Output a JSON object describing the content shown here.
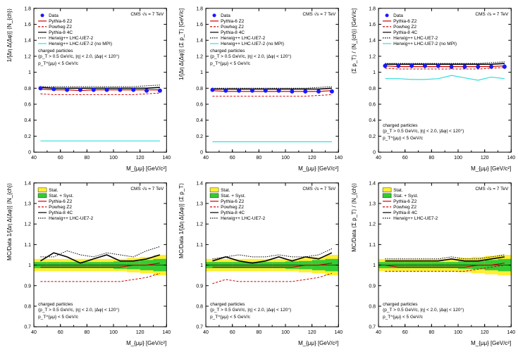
{
  "meta": {
    "experiment": "CMS",
    "sqrt_s": "√s = 7 TeV"
  },
  "common": {
    "x_label": "M_{μμ} [GeV/c²]",
    "xlim": [
      40,
      140
    ],
    "xticks": [
      40,
      60,
      80,
      100,
      120,
      140
    ],
    "cuts": "charged particles",
    "cut_detail": "(p_T > 0.5 GeV/c, |η| < 2.0, |Δφ| < 120°)",
    "pt_cut": "p_T^{μμ} < 5 GeV/c",
    "colors": {
      "data": "#1a1aff",
      "pythia6": "#cc0000",
      "powheg": "#cc0000",
      "pythia8": "#000000",
      "herwig": "#000000",
      "herwig_nompi": "#33dddd",
      "stat_band": "#ffee33",
      "statsyst_band": "#33cc33",
      "axis": "#000000",
      "tick": "#000000"
    },
    "line_styles": {
      "pythia6": "solid",
      "powheg": "dashed",
      "pythia8": "solid",
      "herwig": "dotted",
      "herwig_nompi": "solid"
    },
    "line_widths": {
      "pythia6": 1.2,
      "powheg": 1.0,
      "pythia8": 1.6,
      "herwig": 1.0,
      "herwig_nompi": 1.2
    },
    "marker": {
      "data_shape": "circle",
      "data_size": 3.0
    }
  },
  "top_legend": [
    {
      "label": "Data",
      "kind": "marker",
      "color": "#1a1aff"
    },
    {
      "label": "Pythia-6 Z2",
      "kind": "line",
      "color": "#cc0000",
      "dash": ""
    },
    {
      "label": "Powheg Z2",
      "kind": "line",
      "color": "#cc0000",
      "dash": "3,2"
    },
    {
      "label": "Pythia-8 4C",
      "kind": "line",
      "color": "#000000",
      "dash": ""
    },
    {
      "label": "Herwig++ LHC-UE7-2",
      "kind": "line",
      "color": "#000000",
      "dash": "1.5,1.5"
    },
    {
      "label": "Herwig++ LHC-UE7-2 (no MPI)",
      "kind": "line",
      "color": "#33dddd",
      "dash": ""
    }
  ],
  "bottom_legend": [
    {
      "label": "Stat.",
      "kind": "box",
      "color": "#ffee33"
    },
    {
      "label": "Stat. + Syst.",
      "kind": "box",
      "color": "#33cc33"
    },
    {
      "label": "Pythia-6 Z2",
      "kind": "line",
      "color": "#cc0000",
      "dash": ""
    },
    {
      "label": "Powheg Z2",
      "kind": "line",
      "color": "#cc0000",
      "dash": "3,2"
    },
    {
      "label": "Pythia-8 4C",
      "kind": "line",
      "color": "#000000",
      "dash": ""
    },
    {
      "label": "Herwig++ LHC-UE7-2",
      "kind": "line",
      "color": "#000000",
      "dash": "1.5,1.5"
    }
  ],
  "top_row": {
    "ylim": [
      0,
      1.8
    ],
    "yticks": [
      0,
      0.2,
      0.4,
      0.6,
      0.8,
      1,
      1.2,
      1.4,
      1.6,
      1.8
    ],
    "panels": [
      {
        "ylabel": "1/[Δη Δ(Δφ)] ⟨N_{ch}⟩",
        "anno_pos": "upper",
        "series": {
          "x": [
            45,
            55,
            65,
            75,
            85,
            95,
            105,
            115,
            125,
            135
          ],
          "data": [
            0.8,
            0.79,
            0.78,
            0.78,
            0.78,
            0.78,
            0.78,
            0.78,
            0.77,
            0.77
          ],
          "data_err": [
            0.02,
            0.02,
            0.02,
            0.02,
            0.02,
            0.02,
            0.02,
            0.02,
            0.02,
            0.02
          ],
          "pythia6": [
            0.79,
            0.78,
            0.78,
            0.77,
            0.78,
            0.78,
            0.78,
            0.78,
            0.78,
            0.78
          ],
          "powheg": [
            0.73,
            0.72,
            0.72,
            0.72,
            0.72,
            0.72,
            0.72,
            0.72,
            0.73,
            0.74
          ],
          "pythia8": [
            0.81,
            0.8,
            0.8,
            0.8,
            0.8,
            0.8,
            0.8,
            0.8,
            0.8,
            0.81
          ],
          "herwig": [
            0.82,
            0.82,
            0.82,
            0.82,
            0.82,
            0.82,
            0.82,
            0.82,
            0.83,
            0.84
          ],
          "herwig_nompi": [
            0.14,
            0.14,
            0.14,
            0.14,
            0.14,
            0.14,
            0.14,
            0.14,
            0.14,
            0.14
          ]
        }
      },
      {
        "ylabel": "1/[Δη Δ(Δφ)] ⟨Σ p_T⟩ [GeV/c]",
        "anno_pos": "upper",
        "series": {
          "x": [
            45,
            55,
            65,
            75,
            85,
            95,
            105,
            115,
            125,
            135
          ],
          "data": [
            0.78,
            0.77,
            0.77,
            0.77,
            0.77,
            0.77,
            0.76,
            0.76,
            0.76,
            0.76
          ],
          "data_err": [
            0.02,
            0.02,
            0.02,
            0.02,
            0.02,
            0.02,
            0.02,
            0.02,
            0.02,
            0.02
          ],
          "pythia6": [
            0.77,
            0.76,
            0.76,
            0.76,
            0.76,
            0.76,
            0.76,
            0.76,
            0.76,
            0.77
          ],
          "powheg": [
            0.7,
            0.7,
            0.7,
            0.7,
            0.7,
            0.7,
            0.7,
            0.7,
            0.71,
            0.72
          ],
          "pythia8": [
            0.79,
            0.79,
            0.79,
            0.79,
            0.79,
            0.79,
            0.79,
            0.79,
            0.79,
            0.8
          ],
          "herwig": [
            0.8,
            0.8,
            0.8,
            0.8,
            0.8,
            0.8,
            0.8,
            0.8,
            0.81,
            0.82
          ],
          "herwig_nompi": [
            0.13,
            0.13,
            0.13,
            0.13,
            0.13,
            0.13,
            0.13,
            0.13,
            0.13,
            0.13
          ]
        }
      },
      {
        "ylabel": "⟨Σ p_T⟩ / ⟨N_{ch}⟩ [GeV/c]",
        "anno_pos": "lower",
        "series": {
          "x": [
            45,
            55,
            65,
            75,
            85,
            95,
            105,
            115,
            125,
            135
          ],
          "data": [
            1.08,
            1.08,
            1.08,
            1.08,
            1.08,
            1.07,
            1.07,
            1.07,
            1.07,
            1.07
          ],
          "data_err": [
            0.03,
            0.03,
            0.03,
            0.03,
            0.03,
            0.03,
            0.03,
            0.03,
            0.03,
            0.03
          ],
          "pythia6": [
            1.08,
            1.07,
            1.07,
            1.07,
            1.07,
            1.07,
            1.07,
            1.07,
            1.07,
            1.08
          ],
          "powheg": [
            1.05,
            1.04,
            1.04,
            1.04,
            1.04,
            1.04,
            1.04,
            1.04,
            1.05,
            1.06
          ],
          "pythia8": [
            1.1,
            1.1,
            1.1,
            1.1,
            1.1,
            1.1,
            1.1,
            1.1,
            1.1,
            1.11
          ],
          "herwig": [
            1.11,
            1.11,
            1.11,
            1.11,
            1.11,
            1.11,
            1.11,
            1.11,
            1.12,
            1.13
          ],
          "herwig_nompi": [
            0.92,
            0.92,
            0.91,
            0.91,
            0.92,
            0.96,
            0.93,
            0.9,
            0.94,
            0.92
          ]
        }
      }
    ]
  },
  "bottom_row": {
    "ylim": [
      0.7,
      1.4
    ],
    "yticks": [
      0.7,
      0.8,
      0.9,
      1,
      1.1,
      1.2,
      1.3,
      1.4
    ],
    "panels": [
      {
        "ylabel": "MC/Data 1/[Δη Δ(Δφ)] ⟨N_{ch}⟩",
        "series": {
          "x": [
            45,
            55,
            65,
            75,
            85,
            95,
            105,
            115,
            125,
            135
          ],
          "stat": [
            0.03,
            0.03,
            0.03,
            0.03,
            0.03,
            0.03,
            0.03,
            0.035,
            0.04,
            0.05
          ],
          "statsyst": [
            0.015,
            0.015,
            0.015,
            0.015,
            0.015,
            0.015,
            0.018,
            0.02,
            0.025,
            0.03
          ],
          "pythia6": [
            0.99,
            0.99,
            0.99,
            0.99,
            0.99,
            0.99,
            0.99,
            1.0,
            1.0,
            1.01
          ],
          "powheg": [
            0.92,
            0.92,
            0.92,
            0.92,
            0.92,
            0.92,
            0.92,
            0.93,
            0.94,
            0.96
          ],
          "pythia8": [
            1.02,
            1.06,
            1.04,
            1.01,
            1.03,
            1.05,
            1.02,
            1.02,
            1.03,
            1.05
          ],
          "herwig": [
            1.04,
            1.04,
            1.07,
            1.05,
            1.04,
            1.06,
            1.05,
            1.04,
            1.07,
            1.09
          ]
        }
      },
      {
        "ylabel": "MC/Data 1/[Δη Δ(Δφ)] ⟨Σ p_T⟩",
        "series": {
          "x": [
            45,
            55,
            65,
            75,
            85,
            95,
            105,
            115,
            125,
            135
          ],
          "stat": [
            0.03,
            0.03,
            0.03,
            0.03,
            0.03,
            0.03,
            0.03,
            0.035,
            0.04,
            0.05
          ],
          "statsyst": [
            0.015,
            0.015,
            0.015,
            0.015,
            0.015,
            0.015,
            0.018,
            0.02,
            0.025,
            0.03
          ],
          "pythia6": [
            0.99,
            0.99,
            0.99,
            0.99,
            0.99,
            0.99,
            0.99,
            1.0,
            1.0,
            1.01
          ],
          "powheg": [
            0.91,
            0.93,
            0.92,
            0.92,
            0.92,
            0.92,
            0.92,
            0.93,
            0.94,
            0.96
          ],
          "pythia8": [
            1.02,
            1.04,
            1.02,
            1.01,
            1.02,
            1.04,
            1.02,
            1.04,
            1.03,
            1.06
          ],
          "herwig": [
            1.03,
            1.04,
            1.05,
            1.04,
            1.04,
            1.05,
            1.04,
            1.04,
            1.05,
            1.08
          ]
        }
      },
      {
        "ylabel": "MC/Data ⟨Σ p_T⟩ / ⟨N_{ch}⟩",
        "series": {
          "x": [
            45,
            55,
            65,
            75,
            85,
            95,
            105,
            115,
            125,
            135
          ],
          "stat": [
            0.03,
            0.03,
            0.03,
            0.03,
            0.03,
            0.03,
            0.035,
            0.04,
            0.045,
            0.05
          ],
          "statsyst": [
            0.015,
            0.015,
            0.015,
            0.015,
            0.015,
            0.015,
            0.018,
            0.02,
            0.025,
            0.03
          ],
          "pythia6": [
            1.0,
            0.99,
            0.99,
            0.99,
            0.99,
            0.99,
            0.99,
            1.0,
            1.0,
            1.01
          ],
          "powheg": [
            0.97,
            0.97,
            0.97,
            0.97,
            0.97,
            0.97,
            0.97,
            0.98,
            0.99,
            1.0
          ],
          "pythia8": [
            1.02,
            1.02,
            1.02,
            1.02,
            1.02,
            1.03,
            1.02,
            1.02,
            1.03,
            1.04
          ],
          "herwig": [
            1.03,
            1.03,
            1.03,
            1.03,
            1.03,
            1.04,
            1.03,
            1.03,
            1.04,
            1.05
          ]
        }
      }
    ]
  }
}
